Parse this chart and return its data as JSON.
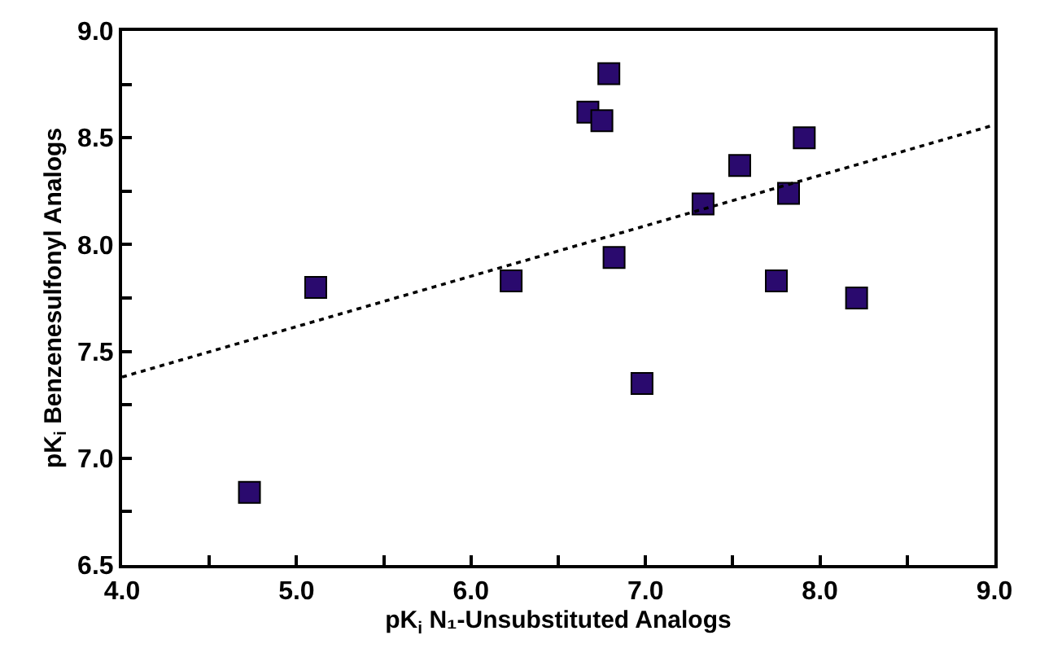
{
  "chart_data": {
    "type": "scatter",
    "xlabel": "pK$_{i}$ N₁-Unsubstituted Analogs",
    "ylabel": "pK$_{i}$ Benzenesulfonyl Analogs",
    "x": [
      4.73,
      5.11,
      6.23,
      6.67,
      6.75,
      6.79,
      6.82,
      6.98,
      7.33,
      7.54,
      7.75,
      7.82,
      7.91,
      8.21
    ],
    "series": [
      {
        "color": "#2a0a6e",
        "marker": "square",
        "values": [
          6.84,
          7.8,
          7.83,
          8.62,
          8.58,
          8.8,
          7.94,
          7.35,
          8.19,
          8.37,
          7.83,
          8.24,
          8.5,
          7.75
        ]
      },
      {
        "type": "line",
        "x": [
          4.0,
          9.0
        ],
        "values": [
          7.38,
          8.56
        ],
        "color": "#000000",
        "line_style": "dotted",
        "marker": "none"
      }
    ],
    "xlim": [
      4.0,
      9.0
    ],
    "ylim": [
      6.5,
      9.0
    ],
    "xticks": [
      {
        "value": 4.0,
        "label": "4.0"
      },
      {
        "value": 4.5,
        "label": null
      },
      {
        "value": 5.0,
        "label": "5.0"
      },
      {
        "value": 5.5,
        "label": null
      },
      {
        "value": 6.0,
        "label": "6.0"
      },
      {
        "value": 6.5,
        "label": null
      },
      {
        "value": 7.0,
        "label": "7.0"
      },
      {
        "value": 7.5,
        "label": null
      },
      {
        "value": 8.0,
        "label": "8.0"
      },
      {
        "value": 8.5,
        "label": null
      },
      {
        "value": 9.0,
        "label": "9.0"
      }
    ],
    "yticks": [
      {
        "value": 6.5,
        "label": "6.5"
      },
      {
        "value": 6.75,
        "label": null
      },
      {
        "value": 7.0,
        "label": "7.0"
      },
      {
        "value": 7.25,
        "label": null
      },
      {
        "value": 7.5,
        "label": "7.5"
      },
      {
        "value": 7.75,
        "label": null
      },
      {
        "value": 8.0,
        "label": "8.0"
      },
      {
        "value": 8.25,
        "label": null
      },
      {
        "value": 8.5,
        "label": "8.5"
      },
      {
        "value": 8.75,
        "label": null
      },
      {
        "value": 9.0,
        "label": "9.0"
      }
    ],
    "legend": false
  }
}
